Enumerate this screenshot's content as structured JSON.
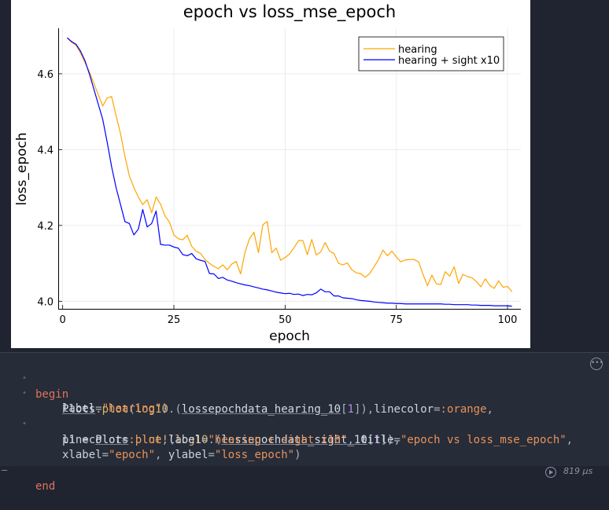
{
  "chart_data": {
    "type": "line",
    "title": "epoch vs loss_mse_epoch",
    "xlabel": "epoch",
    "ylabel": "loss_epoch",
    "xlim": [
      -1,
      103
    ],
    "ylim": [
      3.98,
      4.72
    ],
    "xticks": [
      0,
      25,
      50,
      75,
      100
    ],
    "yticks": [
      4.0,
      4.2,
      4.4,
      4.6
    ],
    "xtick_labels": [
      "0",
      "25",
      "50",
      "75",
      "100"
    ],
    "ytick_labels": [
      "4.0",
      "4.2",
      "4.4",
      "4.6"
    ],
    "grid": true,
    "legend_position": "top-right",
    "series": [
      {
        "name": "hearing",
        "color": "#ffa500",
        "values": [
          4.695,
          4.683,
          4.675,
          4.655,
          4.63,
          4.605,
          4.575,
          4.545,
          4.515,
          4.536,
          4.54,
          4.49,
          4.442,
          4.382,
          4.33,
          4.3,
          4.275,
          4.255,
          4.268,
          4.233,
          4.275,
          4.256,
          4.225,
          4.209,
          4.175,
          4.165,
          4.162,
          4.174,
          4.145,
          4.132,
          4.126,
          4.11,
          4.1,
          4.092,
          4.086,
          4.096,
          4.083,
          4.098,
          4.105,
          4.072,
          4.13,
          4.165,
          4.182,
          4.128,
          4.202,
          4.21,
          4.128,
          4.14,
          4.108,
          4.115,
          4.125,
          4.141,
          4.16,
          4.16,
          4.123,
          4.163,
          4.122,
          4.13,
          4.155,
          4.132,
          4.126,
          4.1,
          4.096,
          4.101,
          4.083,
          4.075,
          4.073,
          4.063,
          4.073,
          4.091,
          4.11,
          4.135,
          4.12,
          4.132,
          4.117,
          4.104,
          4.109,
          4.11,
          4.11,
          4.104,
          4.071,
          4.041,
          4.069,
          4.046,
          4.044,
          4.078,
          4.066,
          4.091,
          4.047,
          4.071,
          4.065,
          4.062,
          4.052,
          4.038,
          4.059,
          4.042,
          4.034,
          4.054,
          4.037,
          4.039,
          4.025
        ]
      },
      {
        "name": "hearing + sight x10",
        "color": "#0000ff",
        "values": [
          4.695,
          4.685,
          4.678,
          4.66,
          4.635,
          4.6,
          4.56,
          4.52,
          4.48,
          4.42,
          4.355,
          4.3,
          4.255,
          4.21,
          4.205,
          4.175,
          4.19,
          4.242,
          4.196,
          4.205,
          4.238,
          4.15,
          4.148,
          4.148,
          4.143,
          4.14,
          4.123,
          4.12,
          4.126,
          4.112,
          4.108,
          4.105,
          4.073,
          4.072,
          4.06,
          4.063,
          4.056,
          4.053,
          4.049,
          4.046,
          4.043,
          4.041,
          4.038,
          4.035,
          4.032,
          4.03,
          4.027,
          4.024,
          4.022,
          4.02,
          4.021,
          4.018,
          4.019,
          4.015,
          4.018,
          4.017,
          4.022,
          4.032,
          4.025,
          4.025,
          4.014,
          4.014,
          4.009,
          4.008,
          4.007,
          4.004,
          4.002,
          4.001,
          4.0,
          3.998,
          3.997,
          3.996,
          3.995,
          3.995,
          3.994,
          3.994,
          3.993,
          3.993,
          3.993,
          3.993,
          3.993,
          3.993,
          3.993,
          3.993,
          3.993,
          3.992,
          3.992,
          3.991,
          3.991,
          3.991,
          3.991,
          3.99,
          3.99,
          3.989,
          3.989,
          3.989,
          3.988,
          3.988,
          3.988,
          3.988,
          3.987
        ]
      }
    ]
  },
  "code": {
    "line1_kw": "begin",
    "line2_a": "Plots",
    "line2_b": ".plot",
    "line2_c": "(",
    "line2_d": "log10",
    "line2_e": ".(",
    "line2_f": "lossepochdata_hearing_10",
    "line2_g": "[",
    "line2_h": "1",
    "line2_i": "]),",
    "line2_j": "linecolor",
    "line2_k": "=",
    "line2_l": ":orange",
    "line2_m": ",",
    "line3_a": "label",
    "line3_b": "=",
    "line3_c": "\"hearing\"",
    "line3_d": ")",
    "line4_a": "p1",
    "line4_b": " = ",
    "line4_c": "Plots",
    "line4_d": ".plot!",
    "line4_e": "(",
    "line4_f": "log10",
    "line4_g": ".(",
    "line4_h": "lossepochdata_sight_10",
    "line4_i": "[",
    "line4_j": "1",
    "line4_k": "]),",
    "line5_a": "linecolor",
    "line5_b": "=",
    "line5_c": ":blue",
    "line5_d": ",",
    "line5_e": "label",
    "line5_f": "=",
    "line5_g": "\"hearing + sight x10\"",
    "line5_h": ", ",
    "line5_i": "title",
    "line5_j": "=",
    "line5_k": "\"epoch vs loss_mse_epoch\"",
    "line5_l": ",",
    "line6_a": "xlabel",
    "line6_b": "=",
    "line6_c": "\"epoch\"",
    "line6_d": ", ",
    "line6_e": "ylabel",
    "line6_f": "=",
    "line6_g": "\"loss_epoch\"",
    "line6_h": ")",
    "line7_kw": "end"
  },
  "status": {
    "runtime": "819 μs",
    "left_marker": "–"
  },
  "icons": {
    "cell_menu": "more-options-icon",
    "run": "run-cell-icon"
  }
}
